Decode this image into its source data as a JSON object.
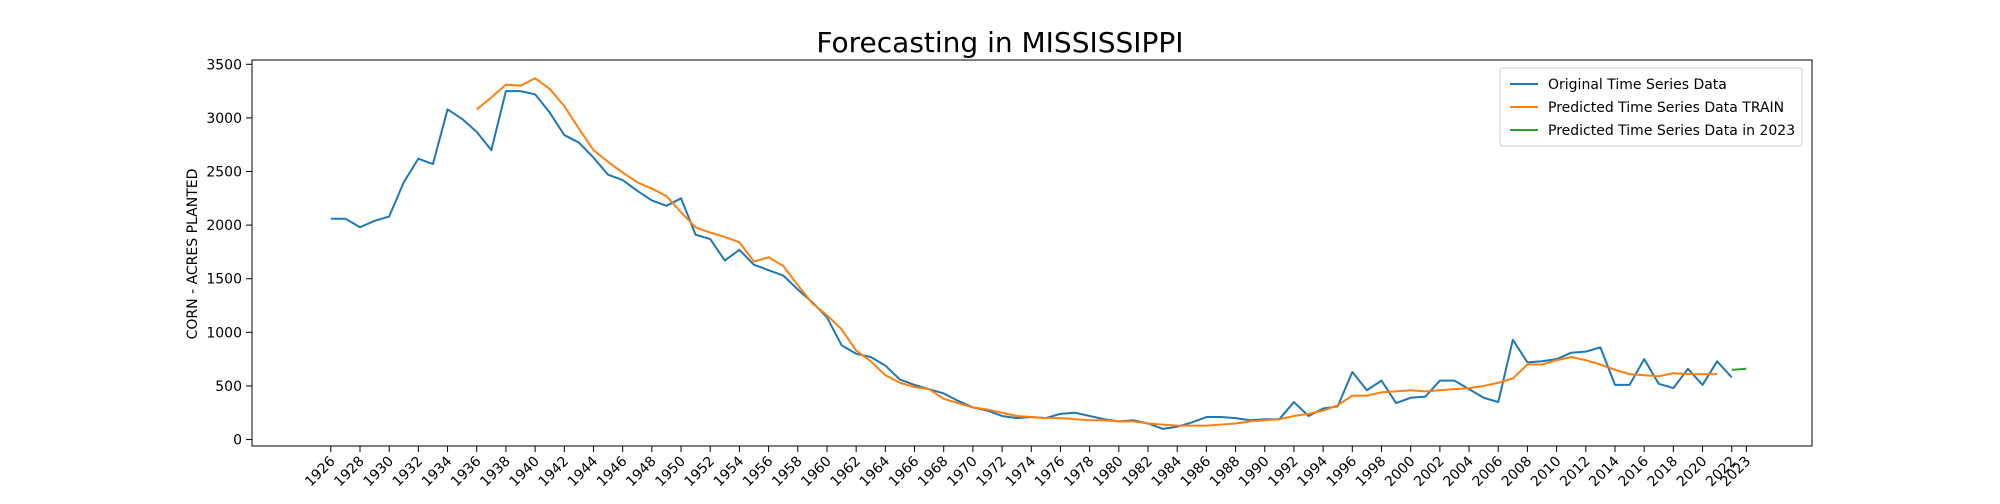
{
  "chart_data": {
    "type": "line",
    "title": "Forecasting in MISSISSIPPI",
    "xlabel": "",
    "ylabel": "CORN - ACRES PLANTED",
    "ylim": [
      -60,
      3540
    ],
    "xlim": [
      1920.6,
      2027.5
    ],
    "yticks": [
      0,
      500,
      1000,
      1500,
      2000,
      2500,
      3000,
      3500
    ],
    "xticks": [
      1926,
      1928,
      1930,
      1932,
      1934,
      1936,
      1938,
      1940,
      1942,
      1944,
      1946,
      1948,
      1950,
      1952,
      1954,
      1956,
      1958,
      1960,
      1962,
      1964,
      1966,
      1968,
      1970,
      1972,
      1974,
      1976,
      1978,
      1980,
      1982,
      1984,
      1986,
      1988,
      1990,
      1992,
      1994,
      1996,
      1998,
      2000,
      2002,
      2004,
      2006,
      2008,
      2010,
      2012,
      2014,
      2016,
      2018,
      2020,
      2022,
      2023
    ],
    "grid": false,
    "legend_position": "top-right",
    "colors": {
      "original": "#1f77b4",
      "train": "#ff7f0e",
      "forecast": "#2ca02c"
    },
    "series": [
      {
        "name": "Original Time Series Data",
        "x": [
          1926,
          1927,
          1928,
          1929,
          1930,
          1931,
          1932,
          1933,
          1934,
          1935,
          1936,
          1937,
          1938,
          1939,
          1940,
          1941,
          1942,
          1943,
          1944,
          1945,
          1946,
          1947,
          1948,
          1949,
          1950,
          1951,
          1952,
          1953,
          1954,
          1955,
          1956,
          1957,
          1958,
          1959,
          1960,
          1961,
          1962,
          1963,
          1964,
          1965,
          1966,
          1967,
          1968,
          1969,
          1970,
          1971,
          1972,
          1973,
          1974,
          1975,
          1976,
          1977,
          1978,
          1979,
          1980,
          1981,
          1982,
          1983,
          1984,
          1985,
          1986,
          1987,
          1988,
          1989,
          1990,
          1991,
          1992,
          1993,
          1994,
          1995,
          1996,
          1997,
          1998,
          1999,
          2000,
          2001,
          2002,
          2003,
          2004,
          2005,
          2006,
          2007,
          2008,
          2009,
          2010,
          2011,
          2012,
          2013,
          2014,
          2015,
          2016,
          2017,
          2018,
          2019,
          2020,
          2021,
          2022
        ],
        "values": [
          2060,
          2060,
          1980,
          2040,
          2080,
          2400,
          2620,
          2570,
          3080,
          2990,
          2870,
          2700,
          3250,
          3250,
          3220,
          3050,
          2840,
          2770,
          2630,
          2470,
          2420,
          2320,
          2230,
          2180,
          2250,
          1910,
          1870,
          1670,
          1770,
          1630,
          1580,
          1530,
          1400,
          1280,
          1140,
          880,
          800,
          770,
          690,
          560,
          510,
          470,
          430,
          360,
          300,
          270,
          220,
          200,
          210,
          200,
          240,
          250,
          220,
          190,
          170,
          180,
          150,
          100,
          120,
          160,
          210,
          210,
          200,
          180,
          190,
          190,
          350,
          220,
          290,
          310,
          630,
          460,
          550,
          340,
          390,
          400,
          550,
          550,
          470,
          390,
          350,
          930,
          720,
          730,
          750,
          810,
          820,
          860,
          510,
          510,
          750,
          520,
          480,
          660,
          510,
          730,
          580
        ]
      },
      {
        "name": "Predicted Time Series Data TRAIN",
        "x": [
          1936,
          1937,
          1938,
          1939,
          1940,
          1941,
          1942,
          1943,
          1944,
          1945,
          1946,
          1947,
          1948,
          1949,
          1950,
          1951,
          1952,
          1953,
          1954,
          1955,
          1956,
          1957,
          1958,
          1959,
          1960,
          1961,
          1962,
          1963,
          1964,
          1965,
          1966,
          1967,
          1968,
          1969,
          1970,
          1971,
          1972,
          1973,
          1974,
          1975,
          1976,
          1977,
          1978,
          1979,
          1980,
          1981,
          1982,
          1983,
          1984,
          1985,
          1986,
          1987,
          1988,
          1989,
          1990,
          1991,
          1992,
          1993,
          1994,
          1995,
          1996,
          1997,
          1998,
          1999,
          2000,
          2001,
          2002,
          2003,
          2004,
          2005,
          2006,
          2007,
          2008,
          2009,
          2010,
          2011,
          2012,
          2013,
          2014,
          2015,
          2016,
          2017,
          2018,
          2019,
          2020,
          2021
        ],
        "values": [
          3080,
          3190,
          3310,
          3300,
          3370,
          3270,
          3110,
          2900,
          2700,
          2590,
          2490,
          2400,
          2340,
          2270,
          2120,
          1980,
          1930,
          1890,
          1840,
          1660,
          1700,
          1620,
          1440,
          1270,
          1160,
          1030,
          830,
          730,
          600,
          530,
          490,
          470,
          380,
          340,
          300,
          280,
          250,
          220,
          210,
          200,
          200,
          190,
          180,
          180,
          170,
          170,
          150,
          140,
          130,
          130,
          130,
          140,
          150,
          170,
          180,
          190,
          220,
          240,
          270,
          320,
          410,
          410,
          440,
          450,
          460,
          450,
          460,
          470,
          480,
          500,
          530,
          570,
          700,
          700,
          740,
          770,
          740,
          700,
          650,
          610,
          600,
          590,
          620,
          610,
          610,
          610
        ]
      },
      {
        "name": "Predicted Time Series Data in 2023",
        "x": [
          2022,
          2023
        ],
        "values": [
          650,
          660
        ]
      }
    ]
  }
}
